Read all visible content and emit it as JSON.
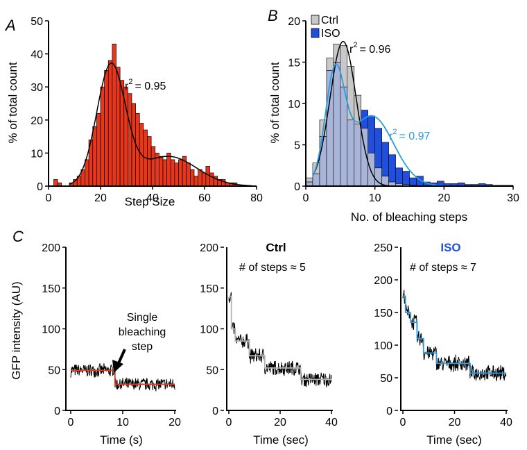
{
  "colors": {
    "stepsize_bar": "#e8361a",
    "ctrl_bar": "#c8c8c8",
    "iso_bar": "#1f4fdc",
    "overlap_bar": "#a9b5d8",
    "fit_black": "#000000",
    "fit_iso": "#2a9be0",
    "trace": "#000000",
    "step_red": "#e8361a",
    "step_grey": "#b4b4b4",
    "step_iso": "#2a9be0",
    "iso_title": "#1f4fdc"
  },
  "chart_data": [
    {
      "panel": "A",
      "type": "bar",
      "xlabel": "Step Size",
      "ylabel": "% of total count",
      "xlim": [
        0,
        80
      ],
      "ylim": [
        0,
        50
      ],
      "xticks": [
        "0",
        "20",
        "40",
        "60",
        "80"
      ],
      "yticks": [
        "0",
        "10",
        "20",
        "30",
        "40",
        "50"
      ],
      "bin_width": 1.5,
      "bin_starts": [
        2,
        3.5,
        5,
        6.5,
        8,
        9.5,
        11,
        12.5,
        14,
        15.5,
        17,
        18.5,
        20,
        21.5,
        23,
        24.5,
        26,
        27.5,
        29,
        30.5,
        32,
        33.5,
        35,
        36.5,
        38,
        39.5,
        41,
        42.5,
        44,
        45.5,
        47,
        48.5,
        50,
        51.5,
        53,
        54.5,
        56,
        57.5,
        59,
        60.5,
        62,
        63.5,
        65,
        66.5,
        68,
        69.5,
        71
      ],
      "values": [
        2,
        1,
        0,
        0,
        1,
        2,
        3,
        5,
        8,
        14,
        18,
        22,
        30,
        35,
        38,
        43,
        36,
        32,
        30,
        28,
        25,
        22,
        19,
        17,
        15,
        12,
        10,
        9,
        8,
        10,
        8,
        7,
        8,
        9,
        7,
        5,
        3,
        5,
        4,
        6,
        4,
        3,
        2,
        2,
        1,
        1,
        1
      ],
      "fit": {
        "type": "two-gaussian",
        "label": "r² = 0.95",
        "r2_base": "r",
        "r2_exp": "2",
        "r2_val": "= 0.95"
      }
    },
    {
      "panel": "B",
      "type": "bar",
      "xlabel": "No. of bleaching steps",
      "ylabel": "% of total count",
      "xlim": [
        0,
        30
      ],
      "ylim": [
        0,
        20
      ],
      "xticks": [
        "0",
        "10",
        "20",
        "30"
      ],
      "yticks": [
        "0",
        "5",
        "10",
        "15",
        "20"
      ],
      "x": [
        1,
        2,
        3,
        4,
        5,
        6,
        7,
        8,
        9,
        10,
        11,
        12,
        13,
        14,
        15,
        16,
        17,
        18,
        19,
        20,
        21,
        22,
        23,
        24,
        25,
        26,
        27,
        28,
        29,
        30
      ],
      "series": [
        {
          "name": "Ctrl",
          "values": [
            1,
            2.8,
            8,
            15.5,
            17.2,
            17,
            14.5,
            11,
            7,
            4,
            2.2,
            1.2,
            0.5,
            0.3,
            0.2,
            0.1,
            0,
            0,
            0,
            0,
            0,
            0,
            0,
            0,
            0,
            0,
            0,
            0,
            0,
            0
          ]
        },
        {
          "name": "ISO",
          "values": [
            0.5,
            1.5,
            6,
            14,
            15,
            12,
            8,
            7.5,
            9.2,
            8.5,
            7,
            5.3,
            3.8,
            2.2,
            1.8,
            1,
            1.2,
            0.5,
            0.4,
            0.6,
            0.3,
            0.3,
            0.4,
            0.2,
            0.2,
            0.3,
            0.2,
            0.1,
            0.1,
            0.1
          ]
        }
      ],
      "legend": [
        "Ctrl",
        "ISO"
      ],
      "fits": [
        {
          "series": "Ctrl",
          "r2_base": "r",
          "r2_exp": "2",
          "r2_val": "= 0.96"
        },
        {
          "series": "ISO",
          "r2_base": "r",
          "r2_exp": "2",
          "r2_val": "= 0.97"
        }
      ]
    },
    {
      "panel": "C",
      "subpanel": 1,
      "type": "line",
      "xlabel": "Time (s)",
      "ylabel": "GFP intensity (AU)",
      "xlim": [
        0,
        20
      ],
      "ylim": [
        0,
        200
      ],
      "xticks": [
        "0",
        "10",
        "20"
      ],
      "yticks": [
        "0",
        "50",
        "100",
        "150",
        "200"
      ],
      "steps": [
        {
          "t_start": 0,
          "t_end": 8.5,
          "level": 49
        },
        {
          "t_start": 8.5,
          "t_end": 20,
          "level": 32
        }
      ],
      "noise_amplitude": 6,
      "annotation": [
        "Single",
        "bleaching",
        "step"
      ]
    },
    {
      "panel": "C",
      "subpanel": 2,
      "type": "line",
      "title": "Ctrl",
      "subtitle": "# of steps ≈ 5",
      "xlabel": "Time (sec)",
      "xlim": [
        0,
        40
      ],
      "ylim": [
        0,
        200
      ],
      "xticks": [
        "0",
        "20",
        "40"
      ],
      "yticks": [
        "0",
        "50",
        "100",
        "150",
        "200"
      ],
      "steps": [
        {
          "t_start": 0,
          "t_end": 1,
          "level": 140
        },
        {
          "t_start": 1,
          "t_end": 2.5,
          "level": 100
        },
        {
          "t_start": 2.5,
          "t_end": 8,
          "level": 85
        },
        {
          "t_start": 8,
          "t_end": 14,
          "level": 67
        },
        {
          "t_start": 14,
          "t_end": 28,
          "level": 52
        },
        {
          "t_start": 28,
          "t_end": 40,
          "level": 38
        }
      ],
      "noise_amplitude": 7
    },
    {
      "panel": "C",
      "subpanel": 3,
      "type": "line",
      "title": "ISO",
      "subtitle": "# of steps ≈ 7",
      "xlabel": "Time (sec)",
      "xlim": [
        0,
        40
      ],
      "ylim": [
        0,
        250
      ],
      "xticks": [
        "0",
        "20",
        "40"
      ],
      "yticks": [
        "0",
        "50",
        "100",
        "150",
        "200",
        "250"
      ],
      "steps": [
        {
          "t_start": 0,
          "t_end": 1,
          "level": 175
        },
        {
          "t_start": 1,
          "t_end": 3,
          "level": 150
        },
        {
          "t_start": 3,
          "t_end": 5.5,
          "level": 135
        },
        {
          "t_start": 5.5,
          "t_end": 8,
          "level": 110
        },
        {
          "t_start": 8,
          "t_end": 13,
          "level": 88
        },
        {
          "t_start": 13,
          "t_end": 26,
          "level": 72
        },
        {
          "t_start": 26,
          "t_end": 40,
          "level": 57
        }
      ],
      "noise_amplitude": 9
    }
  ]
}
